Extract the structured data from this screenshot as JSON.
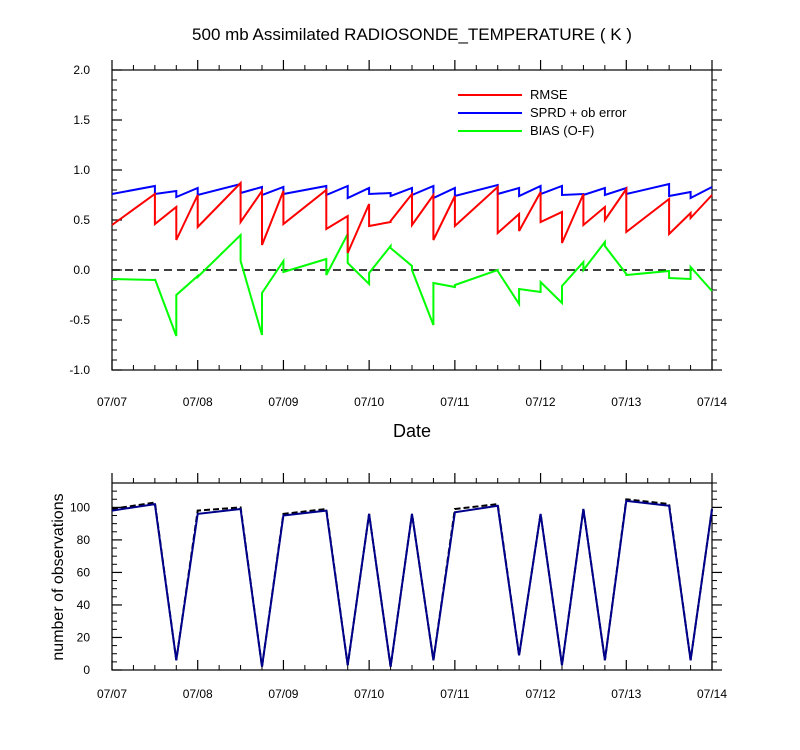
{
  "chart_data": [
    {
      "type": "line",
      "title": "500 mb Assimilated RADIOSONDE_TEMPERATURE ( K )",
      "xlabel": "Date",
      "ylabel": "",
      "x_ticks": [
        "07/07",
        "07/08",
        "07/09",
        "07/10",
        "07/11",
        "07/12",
        "07/13",
        "07/14"
      ],
      "xlim": [
        0,
        7
      ],
      "ylim": [
        -1.0,
        2.0
      ],
      "y_ticks": [
        "-1.0",
        "-0.5",
        "0.0",
        "0.5",
        "1.0",
        "1.5",
        "2.0"
      ],
      "reference_line": {
        "y": 0.0,
        "style": "dashed",
        "color": "#000000"
      },
      "legend_position": "top-right",
      "series": [
        {
          "name": "RMSE",
          "color": "#ff0000",
          "x": [
            0,
            0.5,
            0.5,
            0.75,
            0.75,
            1.0,
            1.0,
            1.5,
            1.5,
            1.75,
            1.75,
            2.0,
            2.0,
            2.5,
            2.5,
            2.75,
            2.75,
            3.0,
            3.0,
            3.25,
            3.25,
            3.5,
            3.5,
            3.75,
            3.75,
            4.0,
            4.0,
            4.5,
            4.5,
            4.75,
            4.75,
            5.0,
            5.0,
            5.25,
            5.25,
            5.5,
            5.5,
            5.75,
            5.75,
            6.0,
            6.0,
            6.5,
            6.5,
            6.75,
            6.75,
            7.0
          ],
          "y": [
            0.45,
            0.76,
            0.46,
            0.63,
            0.3,
            0.75,
            0.43,
            0.87,
            0.48,
            0.79,
            0.25,
            0.79,
            0.46,
            0.8,
            0.41,
            0.54,
            0.17,
            0.66,
            0.44,
            0.48,
            0.49,
            0.76,
            0.45,
            0.75,
            0.3,
            0.74,
            0.44,
            0.83,
            0.37,
            0.56,
            0.39,
            0.78,
            0.48,
            0.58,
            0.27,
            0.76,
            0.45,
            0.63,
            0.5,
            0.81,
            0.38,
            0.71,
            0.36,
            0.57,
            0.52,
            0.75
          ]
        },
        {
          "name": "SPRD + ob error",
          "color": "#0000ff",
          "x": [
            0,
            0.5,
            0.5,
            0.75,
            0.75,
            1.0,
            1.0,
            1.5,
            1.5,
            1.75,
            1.75,
            2.0,
            2.0,
            2.5,
            2.5,
            2.75,
            2.75,
            3.0,
            3.0,
            3.25,
            3.25,
            3.5,
            3.5,
            3.75,
            3.75,
            4.0,
            4.0,
            4.5,
            4.5,
            4.75,
            4.75,
            5.0,
            5.0,
            5.25,
            5.25,
            5.5,
            5.5,
            5.75,
            5.75,
            6.0,
            6.0,
            6.5,
            6.5,
            6.75,
            6.75,
            7.0
          ],
          "y": [
            0.76,
            0.84,
            0.76,
            0.79,
            0.73,
            0.82,
            0.75,
            0.86,
            0.77,
            0.83,
            0.75,
            0.83,
            0.76,
            0.84,
            0.75,
            0.84,
            0.72,
            0.82,
            0.76,
            0.77,
            0.74,
            0.82,
            0.75,
            0.84,
            0.72,
            0.82,
            0.74,
            0.85,
            0.76,
            0.82,
            0.74,
            0.84,
            0.76,
            0.84,
            0.75,
            0.76,
            0.75,
            0.82,
            0.75,
            0.82,
            0.76,
            0.86,
            0.74,
            0.78,
            0.72,
            0.83
          ]
        },
        {
          "name": "BIAS (O-F)",
          "color": "#00ff00",
          "x": [
            0,
            0.5,
            0.5,
            0.75,
            0.75,
            1.0,
            1.0,
            1.5,
            1.5,
            1.75,
            1.75,
            2.0,
            2.0,
            2.5,
            2.5,
            2.75,
            2.75,
            3.0,
            3.0,
            3.25,
            3.25,
            3.5,
            3.5,
            3.75,
            3.75,
            4.0,
            4.0,
            4.5,
            4.5,
            4.75,
            4.75,
            5.0,
            5.0,
            5.25,
            5.25,
            5.5,
            5.5,
            5.75,
            5.75,
            6.0,
            6.0,
            6.5,
            6.5,
            6.75,
            6.75,
            7.0
          ],
          "y": [
            -0.09,
            -0.1,
            -0.09,
            -0.66,
            -0.25,
            -0.06,
            -0.07,
            0.35,
            0.09,
            -0.65,
            -0.23,
            0.09,
            -0.02,
            0.11,
            -0.05,
            0.36,
            0.07,
            -0.14,
            -0.03,
            0.24,
            0.22,
            0.04,
            0.0,
            -0.55,
            -0.13,
            -0.17,
            -0.15,
            0.0,
            -0.01,
            -0.34,
            -0.19,
            -0.22,
            -0.12,
            -0.33,
            -0.16,
            0.08,
            0.0,
            0.28,
            0.24,
            -0.04,
            -0.05,
            -0.01,
            -0.08,
            -0.09,
            0.03,
            -0.21
          ]
        }
      ]
    },
    {
      "type": "line",
      "title": "",
      "xlabel": "",
      "ylabel": "number of observations",
      "x_ticks": [
        "07/07",
        "07/08",
        "07/09",
        "07/10",
        "07/11",
        "07/12",
        "07/13",
        "07/14"
      ],
      "xlim": [
        0,
        7
      ],
      "ylim": [
        0,
        115
      ],
      "y_ticks": [
        "0",
        "20",
        "40",
        "60",
        "80",
        "100"
      ],
      "series": [
        {
          "style": "solid",
          "color": "#00008b",
          "x": [
            0,
            0.5,
            0.75,
            1.0,
            1.5,
            1.75,
            2.0,
            2.5,
            2.75,
            3.0,
            3.25,
            3.5,
            3.75,
            4.0,
            4.5,
            4.75,
            5.0,
            5.25,
            5.5,
            5.75,
            6.0,
            6.5,
            6.75,
            7.0
          ],
          "y": [
            98,
            102,
            6,
            96,
            99,
            2,
            95,
            98,
            3,
            96,
            2,
            96,
            6,
            97,
            101,
            9,
            96,
            3,
            99,
            6,
            104,
            101,
            6,
            99
          ]
        },
        {
          "style": "dashed",
          "color": "#000000",
          "x": [
            0,
            0.5,
            0.75,
            1.0,
            1.5,
            1.75,
            2.0,
            2.5,
            2.75,
            3.0,
            3.25,
            3.5,
            3.75,
            4.0,
            4.5,
            4.75,
            5.0,
            5.25,
            5.5,
            5.75,
            6.0,
            6.5,
            6.75,
            7.0
          ],
          "y": [
            99,
            103,
            6,
            98,
            100,
            2,
            96,
            99,
            3,
            96,
            2,
            96,
            6,
            99,
            102,
            9,
            96,
            3,
            99,
            6,
            105,
            102,
            6,
            99
          ]
        }
      ]
    }
  ]
}
